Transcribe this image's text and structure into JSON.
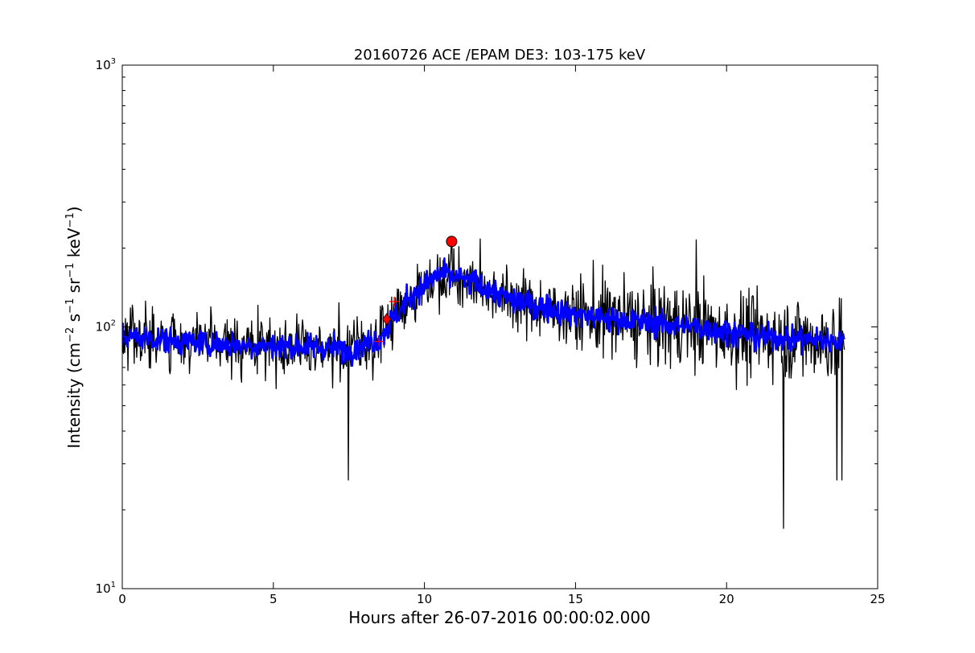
{
  "chart_data": {
    "type": "line",
    "title": "20160726 ACE /EPAM DE3: 103-175 keV",
    "xlabel": "Hours after 26-07-2016 00:00:02.000",
    "ylabel": {
      "prefix": "Intensity (cm",
      "cm_exp": "−2",
      "s": " s",
      "s_exp": "−1",
      "sr": " sr",
      "sr_exp": "−1",
      "kev": " keV",
      "kev_exp": "−1",
      "suffix": ")"
    },
    "xlim": [
      0,
      25
    ],
    "ylim": [
      10,
      1000
    ],
    "yscale": "log",
    "grid": false,
    "x_ticks": [
      {
        "value": 0,
        "label": "0"
      },
      {
        "value": 5,
        "label": "5"
      },
      {
        "value": 10,
        "label": "10"
      },
      {
        "value": 15,
        "label": "15"
      },
      {
        "value": 20,
        "label": "20"
      },
      {
        "value": 25,
        "label": "25"
      }
    ],
    "y_ticks": [
      {
        "value": 10,
        "base": "10",
        "exp": "1"
      },
      {
        "value": 100,
        "base": "10",
        "exp": "2"
      },
      {
        "value": 1000,
        "base": "10",
        "exp": "3"
      }
    ],
    "series": [
      {
        "color": "#000000",
        "style": "raw",
        "profile": [
          [
            0,
            92
          ],
          [
            2,
            88
          ],
          [
            4,
            85
          ],
          [
            6,
            84
          ],
          [
            7.5,
            82
          ],
          [
            8.5,
            90
          ],
          [
            9.5,
            130
          ],
          [
            10.5,
            160
          ],
          [
            11.5,
            150
          ],
          [
            13,
            125
          ],
          [
            15,
            112
          ],
          [
            17,
            105
          ],
          [
            19,
            100
          ],
          [
            21,
            92
          ],
          [
            22.5,
            90
          ],
          [
            23.9,
            88
          ]
        ],
        "spikes": [
          [
            7.48,
            26
          ],
          [
            21.88,
            17
          ],
          [
            19.0,
            215
          ],
          [
            10.9,
            215
          ],
          [
            23.65,
            26
          ],
          [
            23.82,
            26
          ]
        ]
      },
      {
        "color": "#0000ff",
        "style": "smoothed",
        "profile": [
          [
            0,
            92
          ],
          [
            2,
            88
          ],
          [
            4,
            85
          ],
          [
            6,
            84
          ],
          [
            7.5,
            82
          ],
          [
            8.5,
            90
          ],
          [
            9.5,
            130
          ],
          [
            10.5,
            160
          ],
          [
            11.5,
            150
          ],
          [
            13,
            125
          ],
          [
            15,
            112
          ],
          [
            17,
            105
          ],
          [
            19,
            100
          ],
          [
            21,
            92
          ],
          [
            22.5,
            90
          ],
          [
            23.9,
            88
          ]
        ]
      }
    ],
    "markers": [
      {
        "type": "cross",
        "color": "#ff0000",
        "x": 8.5,
        "y": 88
      },
      {
        "type": "cross",
        "color": "#ff0000",
        "x": 9.0,
        "y": 125
      },
      {
        "type": "diamond",
        "color": "#ff0000",
        "x": 8.75,
        "y": 107
      },
      {
        "type": "circle",
        "color": "#ff0000",
        "x": 10.9,
        "y": 212
      }
    ]
  }
}
